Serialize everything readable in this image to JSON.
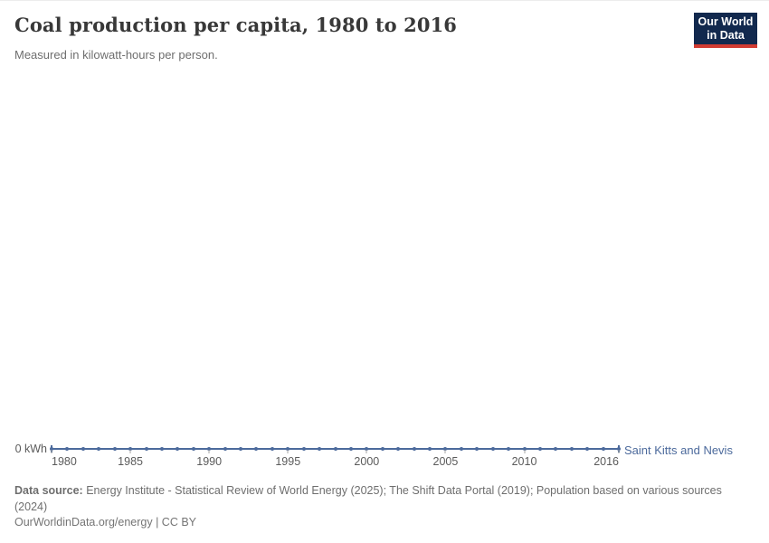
{
  "header": {
    "title": "Coal production per capita, 1980 to 2016",
    "subtitle": "Measured in kilowatt-hours per person."
  },
  "logo": {
    "line1": "Our World",
    "line2": "in Data",
    "bg_color": "#12294e",
    "accent_color": "#d13b32"
  },
  "chart_data": {
    "type": "line",
    "title": "Coal production per capita, 1980 to 2016",
    "subtitle": "Measured in kilowatt-hours per person.",
    "x_range": [
      1980,
      2016
    ],
    "x_ticks": [
      1980,
      1985,
      1990,
      1995,
      2000,
      2005,
      2010,
      2016
    ],
    "y_axis_zero_label": "0 kWh",
    "unit": "kWh",
    "grid": false,
    "legend_position": "inline-right-of-line",
    "series": [
      {
        "name": "Saint Kitts and Nevis",
        "color": "#4C6A9C",
        "x": [
          1980,
          1981,
          1982,
          1983,
          1984,
          1985,
          1986,
          1987,
          1988,
          1989,
          1990,
          1991,
          1992,
          1993,
          1994,
          1995,
          1996,
          1997,
          1998,
          1999,
          2000,
          2001,
          2002,
          2003,
          2004,
          2005,
          2006,
          2007,
          2008,
          2009,
          2010,
          2011,
          2012,
          2013,
          2014,
          2015,
          2016
        ],
        "values": [
          0,
          0,
          0,
          0,
          0,
          0,
          0,
          0,
          0,
          0,
          0,
          0,
          0,
          0,
          0,
          0,
          0,
          0,
          0,
          0,
          0,
          0,
          0,
          0,
          0,
          0,
          0,
          0,
          0,
          0,
          0,
          0,
          0,
          0,
          0,
          0,
          0
        ]
      }
    ]
  },
  "footer": {
    "source_label": "Data source:",
    "source_text": " Energy Institute - Statistical Review of World Energy (2025); The Shift Data Portal (2019); Population based on various sources (2024)",
    "link_text": "OurWorldinData.org/energy | CC BY"
  }
}
